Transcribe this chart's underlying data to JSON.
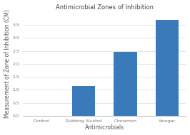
{
  "title": "Antimicrobial Zones of Inhibition",
  "xlabel": "Antimicrobials",
  "ylabel": "Measurement of Zone of Inhibition (CM)",
  "categories": [
    "Control",
    "Rubbing Alcohol",
    "Cinnamon",
    "Vinegar"
  ],
  "values": [
    0,
    1.15,
    2.45,
    3.7
  ],
  "bar_color": "#3a7abb",
  "ylim": [
    0,
    4.0
  ],
  "yticks": [
    0,
    0.5,
    1.0,
    1.5,
    2.0,
    2.5,
    3.0,
    3.5
  ],
  "background_color": "#ffffff",
  "plot_bg_color": "#ffffff",
  "grid_color": "#e0e0e0",
  "title_fontsize": 6,
  "axis_label_fontsize": 5.5,
  "tick_fontsize": 4.5,
  "bar_width": 0.55
}
